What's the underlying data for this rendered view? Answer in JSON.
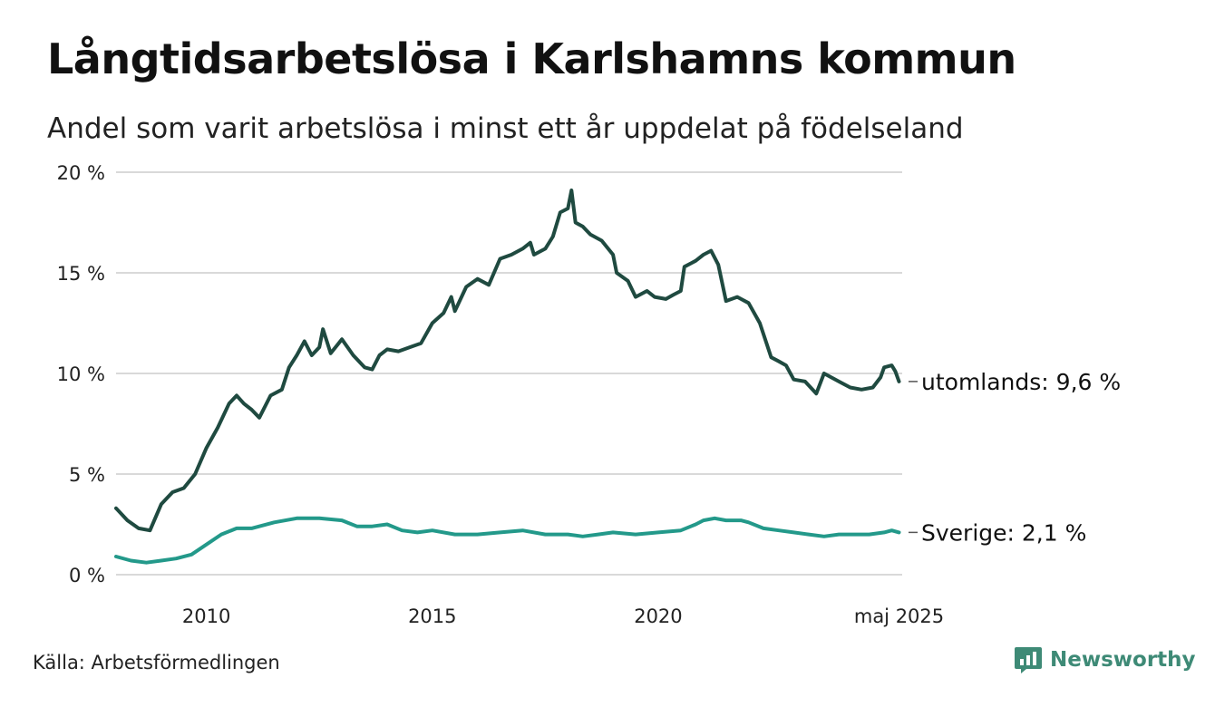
{
  "title": "Långtidsarbetslösa i Karlshamns kommun",
  "subtitle": "Andel som varit arbetslösa i minst ett år uppdelat på födelseland",
  "source": "Källa: Arbetsförmedlingen",
  "brand": "Newsworthy",
  "colors": {
    "utomlands": "#1f4a40",
    "sverige": "#23998a",
    "grid": "#d9d9d9",
    "brand": "#3e8a76"
  },
  "chart_data": {
    "type": "line",
    "ylim": [
      0,
      20
    ],
    "xlim": [
      2008.0,
      2025.4
    ],
    "yticks": [
      {
        "value": 0,
        "label": "0 %"
      },
      {
        "value": 5,
        "label": "5 %"
      },
      {
        "value": 10,
        "label": "10 %"
      },
      {
        "value": 15,
        "label": "15 %"
      },
      {
        "value": 20,
        "label": "20 %"
      }
    ],
    "xticks": [
      {
        "value": 2010,
        "label": "2010"
      },
      {
        "value": 2015,
        "label": "2015"
      },
      {
        "value": 2020,
        "label": "2020"
      },
      {
        "value": 2025.33,
        "label": "maj 2025"
      }
    ],
    "grid": "horizontal",
    "series": [
      {
        "key": "utomlands",
        "end_label": "utomlands: 9,6 %",
        "points": [
          [
            2008.0,
            3.3
          ],
          [
            2008.25,
            2.7
          ],
          [
            2008.5,
            2.3
          ],
          [
            2008.75,
            2.2
          ],
          [
            2009.0,
            3.5
          ],
          [
            2009.25,
            4.1
          ],
          [
            2009.5,
            4.3
          ],
          [
            2009.75,
            5.0
          ],
          [
            2010.0,
            6.3
          ],
          [
            2010.25,
            7.3
          ],
          [
            2010.5,
            8.5
          ],
          [
            2010.67,
            8.9
          ],
          [
            2010.83,
            8.5
          ],
          [
            2011.0,
            8.2
          ],
          [
            2011.17,
            7.8
          ],
          [
            2011.42,
            8.9
          ],
          [
            2011.67,
            9.2
          ],
          [
            2011.83,
            10.3
          ],
          [
            2012.0,
            10.9
          ],
          [
            2012.17,
            11.6
          ],
          [
            2012.33,
            10.9
          ],
          [
            2012.5,
            11.3
          ],
          [
            2012.58,
            12.2
          ],
          [
            2012.75,
            11.0
          ],
          [
            2013.0,
            11.7
          ],
          [
            2013.25,
            10.9
          ],
          [
            2013.5,
            10.3
          ],
          [
            2013.67,
            10.2
          ],
          [
            2013.83,
            10.9
          ],
          [
            2014.0,
            11.2
          ],
          [
            2014.25,
            11.1
          ],
          [
            2014.5,
            11.3
          ],
          [
            2014.75,
            11.5
          ],
          [
            2015.0,
            12.5
          ],
          [
            2015.25,
            13.0
          ],
          [
            2015.42,
            13.8
          ],
          [
            2015.5,
            13.1
          ],
          [
            2015.75,
            14.3
          ],
          [
            2016.0,
            14.7
          ],
          [
            2016.25,
            14.4
          ],
          [
            2016.5,
            15.7
          ],
          [
            2016.75,
            15.9
          ],
          [
            2017.0,
            16.2
          ],
          [
            2017.17,
            16.5
          ],
          [
            2017.25,
            15.9
          ],
          [
            2017.5,
            16.2
          ],
          [
            2017.67,
            16.8
          ],
          [
            2017.83,
            18.0
          ],
          [
            2018.0,
            18.2
          ],
          [
            2018.08,
            19.1
          ],
          [
            2018.17,
            17.5
          ],
          [
            2018.33,
            17.3
          ],
          [
            2018.5,
            16.9
          ],
          [
            2018.75,
            16.6
          ],
          [
            2019.0,
            15.9
          ],
          [
            2019.08,
            15.0
          ],
          [
            2019.33,
            14.6
          ],
          [
            2019.5,
            13.8
          ],
          [
            2019.75,
            14.1
          ],
          [
            2019.92,
            13.8
          ],
          [
            2020.17,
            13.7
          ],
          [
            2020.33,
            13.9
          ],
          [
            2020.5,
            14.1
          ],
          [
            2020.58,
            15.3
          ],
          [
            2020.83,
            15.6
          ],
          [
            2021.0,
            15.9
          ],
          [
            2021.17,
            16.1
          ],
          [
            2021.33,
            15.4
          ],
          [
            2021.5,
            13.6
          ],
          [
            2021.75,
            13.8
          ],
          [
            2022.0,
            13.5
          ],
          [
            2022.25,
            12.5
          ],
          [
            2022.5,
            10.8
          ],
          [
            2022.67,
            10.6
          ],
          [
            2022.83,
            10.4
          ],
          [
            2023.0,
            9.7
          ],
          [
            2023.25,
            9.6
          ],
          [
            2023.5,
            9.0
          ],
          [
            2023.67,
            10.0
          ],
          [
            2024.0,
            9.6
          ],
          [
            2024.25,
            9.3
          ],
          [
            2024.5,
            9.2
          ],
          [
            2024.75,
            9.3
          ],
          [
            2024.92,
            9.8
          ],
          [
            2025.0,
            10.3
          ],
          [
            2025.17,
            10.4
          ],
          [
            2025.25,
            10.1
          ],
          [
            2025.33,
            9.6
          ]
        ]
      },
      {
        "key": "sverige",
        "end_label": "Sverige: 2,1 %",
        "points": [
          [
            2008.0,
            0.9
          ],
          [
            2008.33,
            0.7
          ],
          [
            2008.67,
            0.6
          ],
          [
            2009.0,
            0.7
          ],
          [
            2009.33,
            0.8
          ],
          [
            2009.67,
            1.0
          ],
          [
            2010.0,
            1.5
          ],
          [
            2010.33,
            2.0
          ],
          [
            2010.67,
            2.3
          ],
          [
            2011.0,
            2.3
          ],
          [
            2011.5,
            2.6
          ],
          [
            2012.0,
            2.8
          ],
          [
            2012.5,
            2.8
          ],
          [
            2013.0,
            2.7
          ],
          [
            2013.33,
            2.4
          ],
          [
            2013.67,
            2.4
          ],
          [
            2014.0,
            2.5
          ],
          [
            2014.33,
            2.2
          ],
          [
            2014.67,
            2.1
          ],
          [
            2015.0,
            2.2
          ],
          [
            2015.5,
            2.0
          ],
          [
            2016.0,
            2.0
          ],
          [
            2016.5,
            2.1
          ],
          [
            2017.0,
            2.2
          ],
          [
            2017.5,
            2.0
          ],
          [
            2018.0,
            2.0
          ],
          [
            2018.33,
            1.9
          ],
          [
            2018.67,
            2.0
          ],
          [
            2019.0,
            2.1
          ],
          [
            2019.5,
            2.0
          ],
          [
            2020.0,
            2.1
          ],
          [
            2020.5,
            2.2
          ],
          [
            2020.83,
            2.5
          ],
          [
            2021.0,
            2.7
          ],
          [
            2021.25,
            2.8
          ],
          [
            2021.5,
            2.7
          ],
          [
            2021.83,
            2.7
          ],
          [
            2022.0,
            2.6
          ],
          [
            2022.33,
            2.3
          ],
          [
            2022.67,
            2.2
          ],
          [
            2023.0,
            2.1
          ],
          [
            2023.33,
            2.0
          ],
          [
            2023.67,
            1.9
          ],
          [
            2024.0,
            2.0
          ],
          [
            2024.33,
            2.0
          ],
          [
            2024.67,
            2.0
          ],
          [
            2025.0,
            2.1
          ],
          [
            2025.17,
            2.2
          ],
          [
            2025.33,
            2.1
          ]
        ]
      }
    ]
  }
}
